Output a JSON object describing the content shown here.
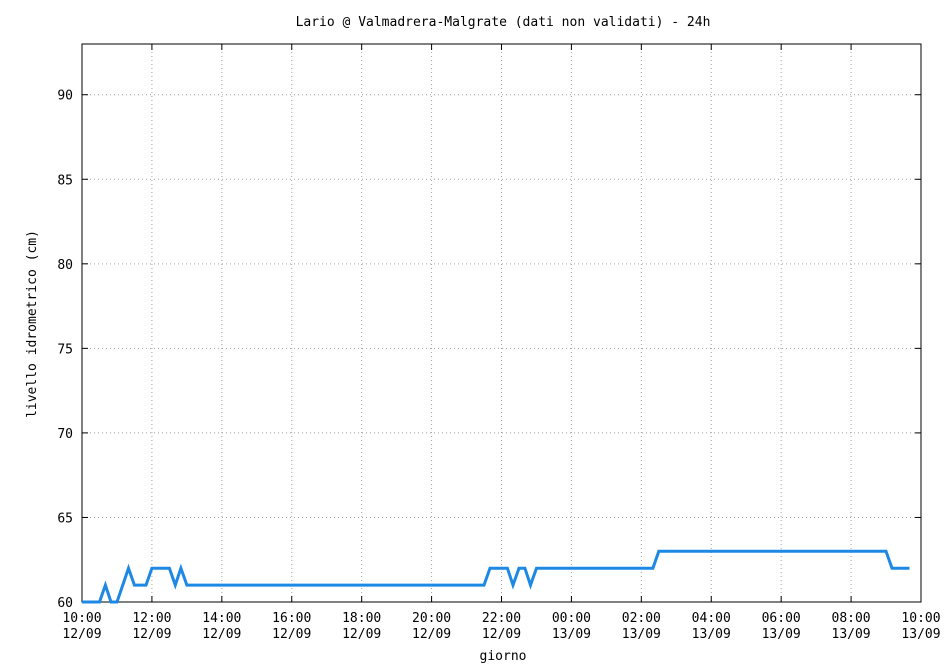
{
  "chart_data": {
    "type": "line",
    "title": "Lario @ Valmadrera-Malgrate (dati non validati) - 24h",
    "xlabel": "giorno",
    "ylabel": "livello idrometrico (cm)",
    "x_range_hours": [
      0,
      24
    ],
    "ylim": [
      60,
      93
    ],
    "grid": true,
    "series_color": "#1e88e5",
    "yticks": [
      60,
      65,
      70,
      75,
      80,
      85,
      90
    ],
    "xticks": [
      {
        "h": 0,
        "time": "10:00",
        "date": "12/09"
      },
      {
        "h": 2,
        "time": "12:00",
        "date": "12/09"
      },
      {
        "h": 4,
        "time": "14:00",
        "date": "12/09"
      },
      {
        "h": 6,
        "time": "16:00",
        "date": "12/09"
      },
      {
        "h": 8,
        "time": "18:00",
        "date": "12/09"
      },
      {
        "h": 10,
        "time": "20:00",
        "date": "12/09"
      },
      {
        "h": 12,
        "time": "22:00",
        "date": "12/09"
      },
      {
        "h": 14,
        "time": "00:00",
        "date": "13/09"
      },
      {
        "h": 16,
        "time": "02:00",
        "date": "13/09"
      },
      {
        "h": 18,
        "time": "04:00",
        "date": "13/09"
      },
      {
        "h": 20,
        "time": "06:00",
        "date": "13/09"
      },
      {
        "h": 22,
        "time": "08:00",
        "date": "13/09"
      },
      {
        "h": 24,
        "time": "10:00",
        "date": "13/09"
      }
    ],
    "series": [
      {
        "x": [
          0.0,
          0.5,
          0.67,
          0.83,
          1.0,
          1.33,
          1.5,
          1.83,
          2.0,
          2.5,
          2.67,
          2.83,
          3.0,
          11.5,
          11.67,
          12.17,
          12.33,
          12.5,
          12.67,
          12.83,
          13.0,
          16.33,
          16.5,
          23.0,
          23.17,
          23.67
        ],
        "y": [
          60,
          60,
          61,
          60,
          60,
          62,
          61,
          61,
          62,
          62,
          61,
          62,
          61,
          61,
          62,
          62,
          61,
          62,
          62,
          61,
          62,
          62,
          63,
          63,
          62,
          62
        ]
      }
    ]
  }
}
